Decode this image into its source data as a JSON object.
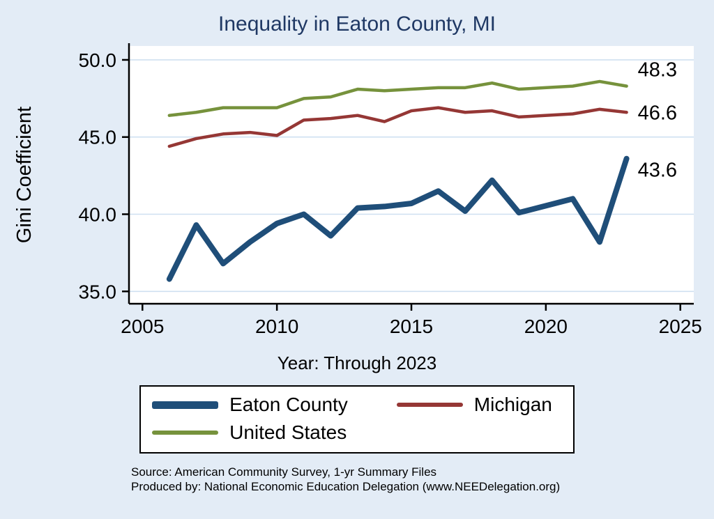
{
  "title": "Inequality in Eaton County, MI",
  "chart_data": {
    "type": "line",
    "title": "Inequality in Eaton County, MI",
    "xlabel": "Year: Through 2023",
    "ylabel": "Gini Coefficient",
    "xlim": [
      2004.5,
      2025.5
    ],
    "ylim": [
      34.2,
      50.9
    ],
    "xticks": [
      2005,
      2010,
      2015,
      2020,
      2025
    ],
    "yticks": [
      "35.0",
      "40.0",
      "45.0",
      "50.0"
    ],
    "grid": true,
    "legend_position": "bottom",
    "x": [
      2006,
      2007,
      2008,
      2009,
      2010,
      2011,
      2012,
      2013,
      2014,
      2015,
      2016,
      2017,
      2018,
      2019,
      2021,
      2022,
      2023
    ],
    "series": [
      {
        "name": "Eaton County",
        "color": "#1f4e79",
        "width": 8,
        "end_label": "43.6",
        "values": [
          35.8,
          39.3,
          36.8,
          38.2,
          39.4,
          40.0,
          38.6,
          40.4,
          40.5,
          40.7,
          41.5,
          40.2,
          42.2,
          40.1,
          41.0,
          38.2,
          43.6
        ]
      },
      {
        "name": "Michigan",
        "color": "#953735",
        "width": 4.5,
        "end_label": "46.6",
        "values": [
          44.4,
          44.9,
          45.2,
          45.3,
          45.1,
          46.1,
          46.2,
          46.4,
          46.0,
          46.7,
          46.9,
          46.6,
          46.7,
          46.3,
          46.5,
          46.8,
          46.6
        ]
      },
      {
        "name": "United States",
        "color": "#76923c",
        "width": 4.5,
        "end_label": "48.3",
        "values": [
          46.4,
          46.6,
          46.9,
          46.9,
          46.9,
          47.5,
          47.6,
          48.1,
          48.0,
          48.1,
          48.2,
          48.2,
          48.5,
          48.1,
          48.3,
          48.6,
          48.3
        ]
      }
    ]
  },
  "footer": {
    "source": "Source: American Community Survey, 1-yr Summary Files",
    "produced_by": "Produced by: National Economic Education Delegation (www.NEEDelegation.org)"
  },
  "colors": {
    "page_bg": "#e3ecf6",
    "plot_bg": "#ffffff",
    "grid": "#cfe0f1",
    "axis": "#000000",
    "title": "#1f3864"
  }
}
